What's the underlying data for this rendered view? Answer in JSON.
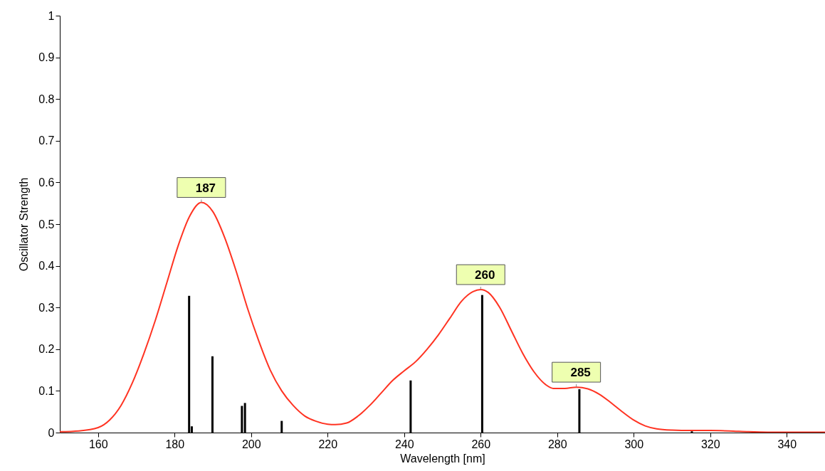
{
  "chart_data": {
    "type": "line",
    "xlabel": "Wavelength [nm]",
    "ylabel": "Oscillator Strength",
    "xlim": [
      150,
      350
    ],
    "ylim": [
      0,
      1
    ],
    "xticks": [
      160,
      180,
      200,
      220,
      240,
      260,
      280,
      300,
      320,
      340
    ],
    "yticks": [
      0,
      0.1,
      0.2,
      0.3,
      0.4,
      0.5,
      0.6,
      0.7,
      0.8,
      0.9,
      1
    ],
    "grid": false,
    "series": [
      {
        "color": "#ff3322",
        "x": [
          150,
          155,
          160,
          163,
          166,
          169,
          172,
          175,
          178,
          181,
          184,
          187,
          190,
          193,
          196,
          199,
          202,
          205,
          208,
          211,
          214,
          217,
          220,
          222,
          225,
          228,
          231,
          234,
          237,
          240,
          243,
          246,
          249,
          252,
          255,
          258,
          260,
          262,
          265,
          268,
          271,
          274,
          277,
          279,
          282,
          285,
          288,
          291,
          294,
          297,
          300,
          303,
          306,
          310,
          315,
          320,
          325,
          330,
          335,
          340,
          345,
          350
        ],
        "values": [
          0.002,
          0.004,
          0.012,
          0.03,
          0.065,
          0.12,
          0.19,
          0.27,
          0.36,
          0.45,
          0.52,
          0.552,
          0.53,
          0.47,
          0.39,
          0.3,
          0.22,
          0.15,
          0.1,
          0.065,
          0.04,
          0.027,
          0.02,
          0.019,
          0.023,
          0.04,
          0.065,
          0.095,
          0.125,
          0.148,
          0.17,
          0.2,
          0.235,
          0.275,
          0.315,
          0.338,
          0.343,
          0.336,
          0.3,
          0.245,
          0.19,
          0.145,
          0.115,
          0.106,
          0.106,
          0.109,
          0.105,
          0.092,
          0.072,
          0.05,
          0.03,
          0.016,
          0.009,
          0.006,
          0.005,
          0.005,
          0.004,
          0.002,
          0.001,
          0.001,
          0.001,
          0.001
        ]
      },
      {
        "type": "bar",
        "color": "#000000",
        "x": [
          183.8,
          184.5,
          189.9,
          197.6,
          198.4,
          208.0,
          241.7,
          260.4,
          285.8,
          315.2
        ],
        "values": [
          0.328,
          0.015,
          0.183,
          0.064,
          0.071,
          0.028,
          0.125,
          0.33,
          0.104,
          0.003
        ]
      }
    ],
    "annotations": [
      {
        "text": "187",
        "x": 187,
        "y": 0.552
      },
      {
        "text": "260",
        "x": 260,
        "y": 0.343
      },
      {
        "text": "285",
        "x": 285,
        "y": 0.109
      }
    ]
  }
}
